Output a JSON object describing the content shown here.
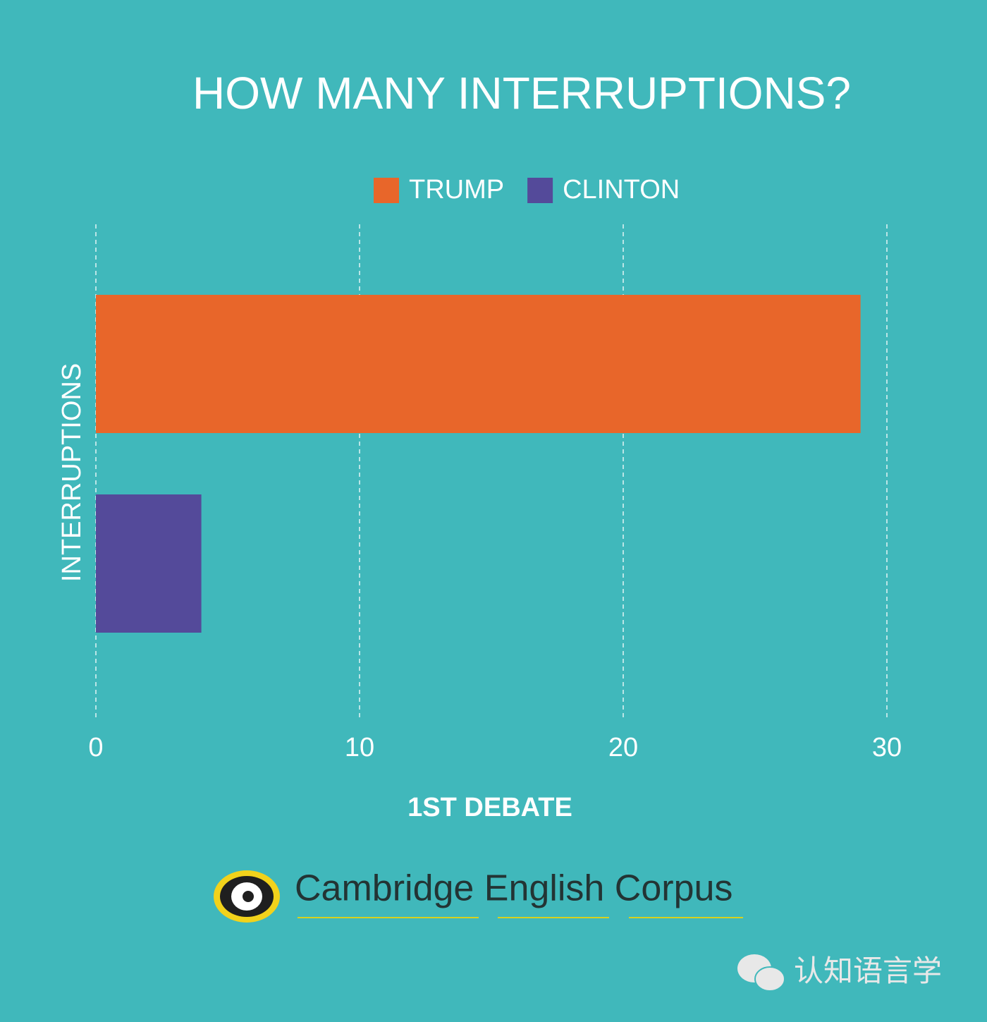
{
  "chart_data": {
    "type": "hbar",
    "title": "HOW MANY INTERRUPTIONS?",
    "x_label": "1ST DEBATE",
    "y_label": "INTERRUPTIONS",
    "categories": [
      null
    ],
    "series": [
      {
        "name": "TRUMP",
        "color": "#e8662a",
        "values": [
          29
        ]
      },
      {
        "name": "CLINTON",
        "color": "#544a9a",
        "values": [
          4
        ]
      }
    ],
    "xlim": [
      0,
      30
    ],
    "xticks": [
      0,
      10,
      20,
      30
    ],
    "grid": true,
    "legend": "top"
  },
  "branding": {
    "logo_text": "Cambridge English Corpus",
    "watermark": "认知语言学"
  }
}
